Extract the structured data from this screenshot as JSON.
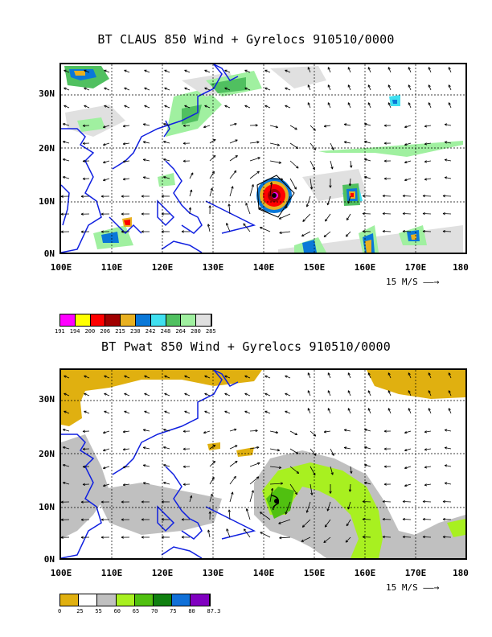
{
  "panel1": {
    "title": "BT CLAUS 850 Wind + Gyrelocs 910510/0000",
    "lat_labels": [
      "30N",
      "20N",
      "10N",
      "0N"
    ],
    "lon_labels": [
      "100E",
      "110E",
      "120E",
      "130E",
      "140E",
      "150E",
      "160E",
      "170E",
      "180"
    ],
    "ref_vector_label": "15 M/S",
    "colorbar": {
      "colors": [
        "#ff00ff",
        "#ffff00",
        "#ff0000",
        "#a00000",
        "#e8b020",
        "#0a78d8",
        "#40e0f0",
        "#50c060",
        "#a0f0a0",
        "#e0e0e0"
      ],
      "labels": [
        "191",
        "194",
        "200",
        "206",
        "215",
        "230",
        "242",
        "248",
        "264",
        "280",
        "285"
      ]
    }
  },
  "panel2": {
    "title": "BT Pwat 850 Wind + Gyrelocs 910510/0000",
    "lat_labels": [
      "30N",
      "20N",
      "10N",
      "0N"
    ],
    "lon_labels": [
      "100E",
      "110E",
      "120E",
      "130E",
      "140E",
      "150E",
      "160E",
      "170E",
      "180"
    ],
    "ref_vector_label": "15 M/S",
    "colorbar": {
      "colors": [
        "#e0b010",
        "#ffffff",
        "#c0c0c0",
        "#a8f020",
        "#50c010",
        "#108010",
        "#1070d8",
        "#8000c0"
      ],
      "labels": [
        "0",
        "25",
        "55",
        "60",
        "65",
        "70",
        "75",
        "80",
        "87.3"
      ]
    }
  }
}
